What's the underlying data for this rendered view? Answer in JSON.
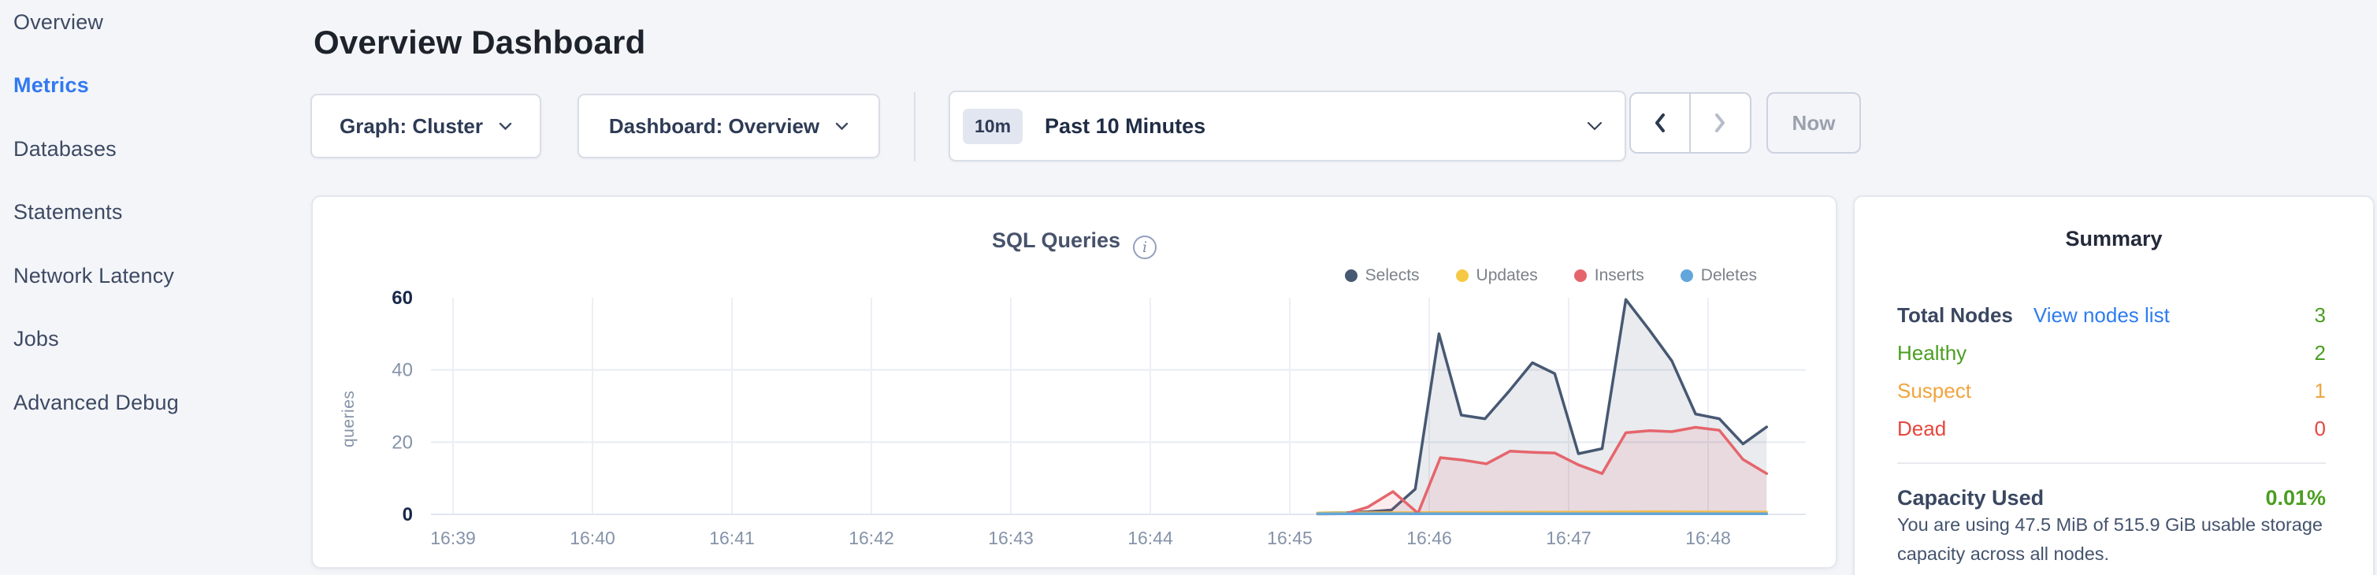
{
  "page": {
    "background": "#f4f5f9"
  },
  "sidebar": {
    "items": [
      {
        "label": "Overview",
        "active": false
      },
      {
        "label": "Metrics",
        "active": true
      },
      {
        "label": "Databases",
        "active": false
      },
      {
        "label": "Statements",
        "active": false
      },
      {
        "label": "Network Latency",
        "active": false
      },
      {
        "label": "Jobs",
        "active": false
      },
      {
        "label": "Advanced Debug",
        "active": false
      }
    ]
  },
  "header": {
    "title": "Overview Dashboard"
  },
  "controls": {
    "graph_dropdown_label": "Graph: Cluster",
    "dashboard_dropdown_label": "Dashboard: Overview",
    "time_window_badge": "10m",
    "time_window_label": "Past 10 Minutes",
    "now_button_label": "Now"
  },
  "icons": {
    "info": "i",
    "chevron_down": "v-shape chevron",
    "chevron_left": "‹",
    "chevron_right": "›"
  },
  "chart_data": {
    "type": "area",
    "title": "SQL Queries",
    "xlabel": "",
    "ylabel": "queries",
    "ylim": [
      0,
      60
    ],
    "y_ticks": [
      0,
      20,
      40,
      60
    ],
    "grid_y": [
      20,
      40
    ],
    "grid": true,
    "legend_position": "top-right",
    "x_tick_labels": [
      "16:39",
      "16:40",
      "16:41",
      "16:42",
      "16:43",
      "16:44",
      "16:45",
      "16:46",
      "16:47",
      "16:48"
    ],
    "x_unit": "minutes offset from 16:39",
    "series": [
      {
        "name": "Selects",
        "color": "#475872",
        "fill_opacity": 0.12,
        "points": [
          [
            6.2,
            0.4
          ],
          [
            6.4,
            0.45
          ],
          [
            6.56,
            0.7
          ],
          [
            6.73,
            1.2
          ],
          [
            6.9,
            7
          ],
          [
            7.07,
            50
          ],
          [
            7.23,
            27.5
          ],
          [
            7.4,
            26.5
          ],
          [
            7.57,
            34
          ],
          [
            7.74,
            42
          ],
          [
            7.9,
            39
          ],
          [
            8.07,
            16.8
          ],
          [
            8.24,
            18.2
          ],
          [
            8.41,
            59.5
          ],
          [
            8.58,
            51
          ],
          [
            8.74,
            42.5
          ],
          [
            8.91,
            27.8
          ],
          [
            9.08,
            26.5
          ],
          [
            9.25,
            19.5
          ],
          [
            9.42,
            24.2
          ]
        ]
      },
      {
        "name": "Updates",
        "color": "#f6c945",
        "fill_opacity": 0.3,
        "points": [
          [
            6.2,
            0.4
          ],
          [
            7.0,
            0.5
          ],
          [
            8.0,
            0.6
          ],
          [
            8.6,
            0.7
          ],
          [
            9.42,
            0.6
          ]
        ]
      },
      {
        "name": "Inserts",
        "color": "#e5656c",
        "fill_opacity": 0.12,
        "points": [
          [
            6.2,
            0.1
          ],
          [
            6.4,
            0.15
          ],
          [
            6.56,
            2.0
          ],
          [
            6.74,
            6.3
          ],
          [
            6.92,
            0.3
          ],
          [
            7.08,
            15.7
          ],
          [
            7.25,
            15.0
          ],
          [
            7.41,
            14.0
          ],
          [
            7.58,
            17.5
          ],
          [
            7.74,
            17.2
          ],
          [
            7.9,
            17.0
          ],
          [
            8.07,
            13.7
          ],
          [
            8.24,
            11.3
          ],
          [
            8.41,
            22.6
          ],
          [
            8.58,
            23.2
          ],
          [
            8.74,
            22.9
          ],
          [
            8.91,
            24.1
          ],
          [
            9.08,
            23.3
          ],
          [
            9.25,
            15.2
          ],
          [
            9.42,
            11.3
          ]
        ]
      },
      {
        "name": "Deletes",
        "color": "#62a6db",
        "fill_opacity": 0.3,
        "points": [
          [
            6.2,
            0.15
          ],
          [
            7.5,
            0.15
          ],
          [
            9.42,
            0.15
          ]
        ]
      }
    ]
  },
  "summary": {
    "title": "Summary",
    "total_nodes_label": "Total Nodes",
    "view_nodes_link": "View nodes list",
    "total_nodes_value": "3",
    "rows": [
      {
        "label": "Healthy",
        "value": "2",
        "color": "#4a9e21"
      },
      {
        "label": "Suspect",
        "value": "1",
        "color": "#f0a43e"
      },
      {
        "label": "Dead",
        "value": "0",
        "color": "#e5483d"
      }
    ],
    "capacity_label": "Capacity Used",
    "capacity_value": "0.01%",
    "capacity_description": "You are using 47.5 MiB of 515.9 GiB usable storage capacity across all nodes."
  },
  "colors": {
    "accent_blue": "#2e7cf0",
    "healthy_green": "#4a9e21",
    "suspect_orange": "#f0a43e",
    "dead_red": "#e5483d"
  }
}
